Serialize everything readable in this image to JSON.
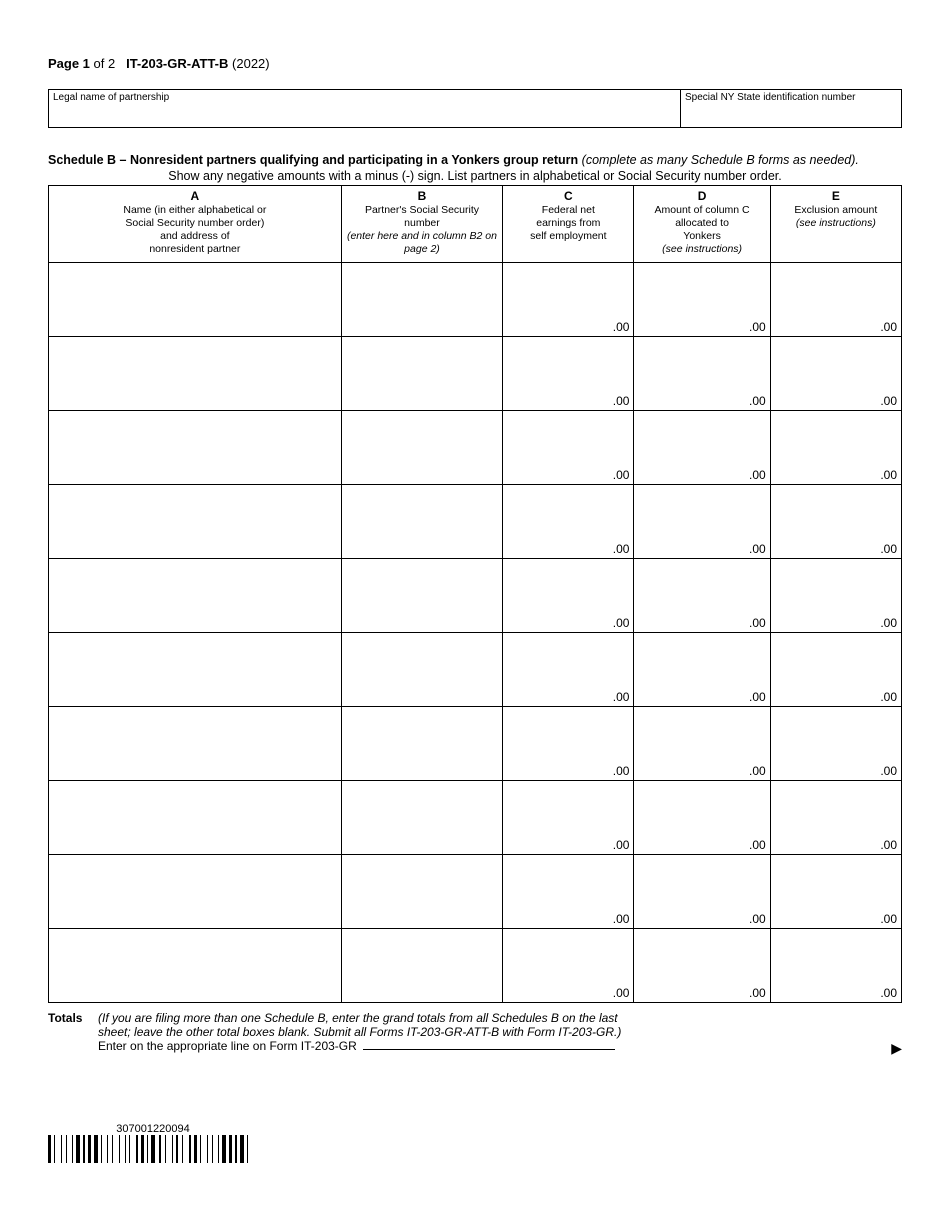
{
  "header": {
    "page_label": "Page 1",
    "page_of": "of 2",
    "form_id": "IT-203-GR-ATT-B",
    "year": "(2022)"
  },
  "id_box": {
    "left_label": "Legal name of partnership",
    "right_label": "Special NY State identification number"
  },
  "schedule": {
    "title_bold": "Schedule B – Nonresident partners qualifying and participating in a Yonkers group return",
    "title_italic": "(complete as many Schedule B forms as needed).",
    "title_line2": "Show any negative amounts with a minus (-) sign. List partners in alphabetical or Social Security number order."
  },
  "columns": {
    "a": {
      "letter": "A",
      "l1": "Name (in either alphabetical or",
      "l2": "Social Security number order)",
      "l3": "and address of",
      "l4": "nonresident partner"
    },
    "b": {
      "letter": "B",
      "l1": "Partner's Social Security",
      "l2": "number",
      "l3": "(enter here and in column B2 on",
      "l4": "page 2)"
    },
    "c": {
      "letter": "C",
      "l1": "Federal net",
      "l2": "earnings from",
      "l3": "self employment"
    },
    "d": {
      "letter": "D",
      "l1": "Amount of column C",
      "l2": "allocated to",
      "l3": "Yonkers",
      "l4": "(see instructions)"
    },
    "e": {
      "letter": "E",
      "l1": "Exclusion amount",
      "l2": "(see instructions)"
    }
  },
  "col_widths": {
    "a": "290px",
    "b": "160px",
    "c": "130px",
    "d": "135px",
    "e": "130px"
  },
  "cell_suffix": ".00",
  "row_count": 10,
  "totals": {
    "label": "Totals",
    "note1": "(If you are filing more than one Schedule B, enter the grand totals from all Schedules B on the last",
    "note2": "sheet; leave the other total boxes blank. Submit all Forms IT-203-GR-ATT-B with Form IT-203-GR.)",
    "enter_line": "Enter on the appropriate line on Form IT-203-GR"
  },
  "barcode_number": "307001220094"
}
